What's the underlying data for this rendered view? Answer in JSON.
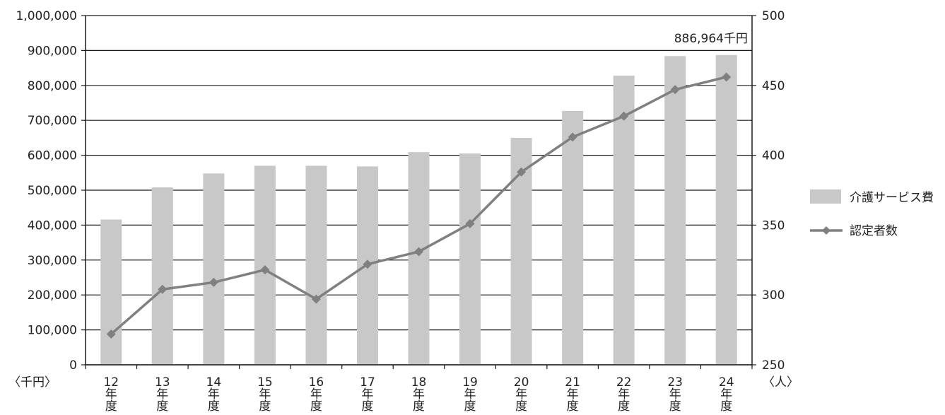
{
  "chart_data": {
    "type": "bar",
    "categories": [
      [
        "12",
        "年",
        "度"
      ],
      [
        "13",
        "年",
        "度"
      ],
      [
        "14",
        "年",
        "度"
      ],
      [
        "15",
        "年",
        "度"
      ],
      [
        "16",
        "年",
        "度"
      ],
      [
        "17",
        "年",
        "度"
      ],
      [
        "18",
        "年",
        "度"
      ],
      [
        "19",
        "年",
        "度"
      ],
      [
        "20",
        "年",
        "度"
      ],
      [
        "21",
        "年",
        "度"
      ],
      [
        "22",
        "年",
        "度"
      ],
      [
        "23",
        "年",
        "度"
      ],
      [
        "24",
        "年",
        "度"
      ]
    ],
    "series": [
      {
        "name": "介護サービス費",
        "type": "bar",
        "axis": "left",
        "color": "#c8c8c8",
        "values": [
          416000,
          508000,
          548000,
          570000,
          570000,
          568000,
          609000,
          605000,
          650000,
          727000,
          828000,
          884000,
          886964
        ]
      },
      {
        "name": "認定者数",
        "type": "line",
        "axis": "right",
        "color": "#808080",
        "marker": "diamond",
        "values": [
          272,
          304,
          309,
          318,
          297,
          322,
          331,
          351,
          388,
          413,
          428,
          447,
          456
        ]
      }
    ],
    "left_axis": {
      "ylim": [
        0,
        1000000
      ],
      "ticks": [
        "0",
        "100,000",
        "200,000",
        "300,000",
        "400,000",
        "500,000",
        "600,000",
        "700,000",
        "800,000",
        "900,000",
        "1,000,000"
      ],
      "unit_label": "〈千円〉"
    },
    "right_axis": {
      "ylim": [
        250,
        500
      ],
      "ticks": [
        "250",
        "300",
        "350",
        "400",
        "450",
        "500"
      ],
      "unit_label": "〈人〉"
    },
    "annotation": {
      "text": "886,964千円",
      "category_index": 12
    },
    "grid": "horizontal",
    "legend_position": "right"
  }
}
